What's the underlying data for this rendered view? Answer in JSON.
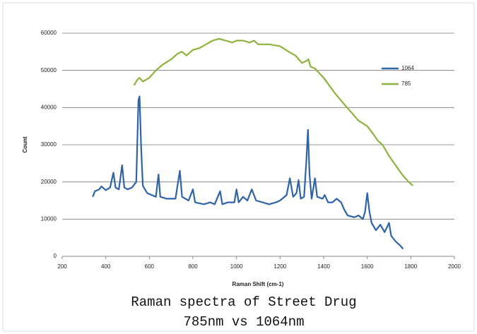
{
  "chart_data": {
    "type": "line",
    "title": "Raman spectra of Street Drug",
    "subtitle": "785nm vs 1064nm",
    "x_label": "Raman Shift (cm-1)",
    "y_label": "Count",
    "xlim": [
      200,
      2000
    ],
    "xticks": [
      200,
      400,
      600,
      800,
      1000,
      1200,
      1400,
      1600,
      1800,
      2000
    ],
    "ylim": [
      0,
      60000
    ],
    "yticks": [
      0,
      10000,
      20000,
      30000,
      40000,
      50000,
      60000
    ],
    "grid": true,
    "legend": "top-right",
    "series": [
      {
        "name": "1064",
        "color": "#2f63a7",
        "x": [
          340,
          350,
          370,
          380,
          400,
          420,
          435,
          445,
          460,
          475,
          485,
          500,
          520,
          540,
          550,
          555,
          562,
          570,
          590,
          610,
          630,
          642,
          650,
          680,
          720,
          740,
          750,
          780,
          800,
          810,
          850,
          880,
          900,
          925,
          935,
          960,
          990,
          1000,
          1010,
          1030,
          1050,
          1070,
          1090,
          1120,
          1150,
          1180,
          1200,
          1230,
          1245,
          1260,
          1275,
          1285,
          1295,
          1310,
          1320,
          1328,
          1335,
          1345,
          1360,
          1370,
          1395,
          1405,
          1420,
          1440,
          1460,
          1480,
          1495,
          1510,
          1540,
          1560,
          1580,
          1590,
          1600,
          1610,
          1620,
          1640,
          1660,
          1680,
          1700,
          1710,
          1730,
          1750,
          1765
        ],
        "values": [
          16000,
          17500,
          18000,
          18800,
          17800,
          18500,
          22500,
          18500,
          18000,
          24500,
          18500,
          18000,
          18500,
          20000,
          42000,
          43000,
          30000,
          19000,
          17000,
          16500,
          16000,
          22000,
          16000,
          15500,
          15500,
          23000,
          16000,
          15000,
          18000,
          14500,
          14000,
          14500,
          14000,
          17500,
          14000,
          14500,
          14500,
          18000,
          14500,
          16000,
          15000,
          18000,
          15000,
          14500,
          14000,
          14500,
          15000,
          16500,
          21000,
          16000,
          17000,
          20500,
          15500,
          16000,
          25000,
          34000,
          22000,
          15500,
          21000,
          16000,
          15500,
          16500,
          14500,
          14500,
          15500,
          14500,
          12500,
          11000,
          10500,
          11000,
          10000,
          12000,
          17000,
          12000,
          9000,
          7000,
          8500,
          6500,
          9000,
          5500,
          4000,
          3000,
          2000
        ]
      },
      {
        "name": "785",
        "color": "#8db23c",
        "x": [
          530,
          545,
          555,
          570,
          600,
          630,
          660,
          700,
          730,
          750,
          770,
          800,
          830,
          860,
          890,
          920,
          950,
          980,
          1000,
          1030,
          1060,
          1080,
          1100,
          1150,
          1200,
          1240,
          1270,
          1300,
          1320,
          1330,
          1340,
          1360,
          1400,
          1450,
          1500,
          1530,
          1560,
          1600,
          1620,
          1650,
          1670,
          1700,
          1730,
          1760,
          1790,
          1810
        ],
        "values": [
          46000,
          47500,
          48000,
          47000,
          48000,
          50000,
          51500,
          53000,
          54500,
          55000,
          54000,
          55500,
          56000,
          57000,
          58000,
          58500,
          58000,
          57500,
          58000,
          58000,
          57500,
          58000,
          57000,
          57000,
          56500,
          55000,
          54000,
          52000,
          52500,
          53000,
          51000,
          50500,
          48000,
          44000,
          40500,
          38500,
          36500,
          35000,
          33500,
          31000,
          30000,
          27000,
          24500,
          22000,
          20000,
          19000
        ]
      }
    ]
  }
}
